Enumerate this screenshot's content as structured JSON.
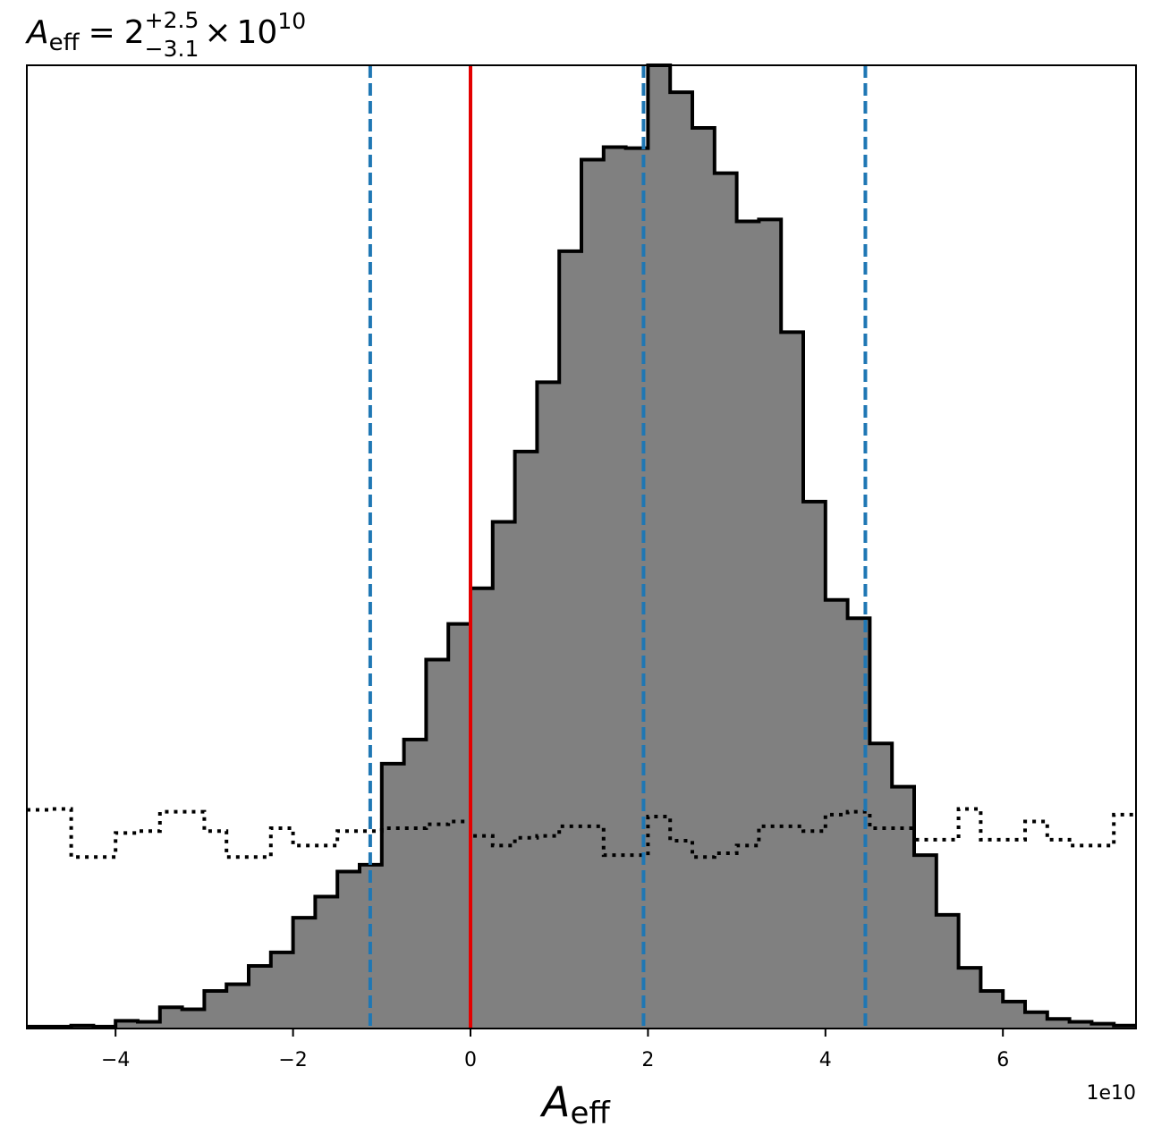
{
  "chart_data": {
    "type": "histogram",
    "title": {
      "symbol": "A",
      "symbol_sub": "eff",
      "equals": "=",
      "median": "2",
      "upper": "+2.5",
      "lower": "−3.1",
      "times": "×",
      "base": "10",
      "exponent": "10"
    },
    "xlabel": {
      "symbol": "A",
      "sub": "eff"
    },
    "x_offset_label": "1e10",
    "xlim": [
      -5.0,
      7.5
    ],
    "ylim": [
      0,
      1.0
    ],
    "x_ticks": [
      -4,
      -2,
      0,
      2,
      4,
      6
    ],
    "x_tick_labels": [
      "−4",
      "−2",
      "0",
      "2",
      "4",
      "6"
    ],
    "y_ticks_visible": false,
    "bin_edges": [
      -5.0,
      -4.75,
      -4.5,
      -4.25,
      -4.0,
      -3.75,
      -3.5,
      -3.25,
      -3.0,
      -2.75,
      -2.5,
      -2.25,
      -2.0,
      -1.75,
      -1.5,
      -1.25,
      -1.0,
      -0.75,
      -0.5,
      -0.25,
      0.0,
      0.25,
      0.5,
      0.75,
      1.0,
      1.25,
      1.5,
      1.75,
      2.0,
      2.25,
      2.5,
      2.75,
      3.0,
      3.25,
      3.5,
      3.75,
      4.0,
      4.25,
      4.5,
      4.75,
      5.0,
      5.25,
      5.5,
      5.75,
      6.0,
      6.25,
      6.5,
      6.75,
      7.0,
      7.25,
      7.5
    ],
    "posterior_hist": {
      "fill_color": "#808080",
      "edge_color": "#000000",
      "values": [
        0.002,
        0.002,
        0.003,
        0.002,
        0.008,
        0.007,
        0.022,
        0.02,
        0.039,
        0.046,
        0.065,
        0.079,
        0.115,
        0.137,
        0.163,
        0.17,
        0.275,
        0.3,
        0.383,
        0.42,
        0.457,
        0.526,
        0.599,
        0.671,
        0.807,
        0.902,
        0.915,
        0.914,
        1.0,
        0.972,
        0.935,
        0.888,
        0.838,
        0.84,
        0.723,
        0.547,
        0.445,
        0.426,
        0.296,
        0.251,
        0.18,
        0.118,
        0.063,
        0.039,
        0.028,
        0.017,
        0.01,
        0.007,
        0.005,
        0.003
      ]
    },
    "prior_hist": {
      "style": "dotted",
      "edge_color": "#000000",
      "values": [
        0.227,
        0.228,
        0.178,
        0.178,
        0.203,
        0.205,
        0.225,
        0.225,
        0.205,
        0.178,
        0.178,
        0.208,
        0.19,
        0.19,
        0.205,
        0.205,
        0.208,
        0.208,
        0.212,
        0.215,
        0.2,
        0.19,
        0.198,
        0.2,
        0.21,
        0.21,
        0.18,
        0.18,
        0.22,
        0.195,
        0.178,
        0.182,
        0.19,
        0.21,
        0.21,
        0.205,
        0.222,
        0.225,
        0.208,
        0.208,
        0.196,
        0.196,
        0.228,
        0.196,
        0.196,
        0.215,
        0.196,
        0.19,
        0.19,
        0.222
      ]
    },
    "vlines": [
      {
        "x": 0.0,
        "color": "#e30000",
        "style": "solid"
      },
      {
        "x": -1.13,
        "color": "#1f77b4",
        "style": "dashed"
      },
      {
        "x": 1.95,
        "color": "#1f77b4",
        "style": "dashed"
      },
      {
        "x": 4.45,
        "color": "#1f77b4",
        "style": "dashed"
      }
    ]
  }
}
